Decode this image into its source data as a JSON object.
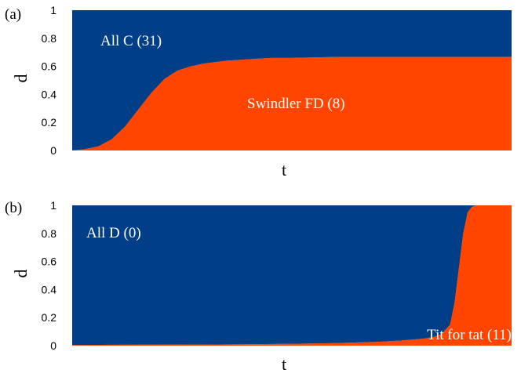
{
  "chart_data": [
    {
      "type": "area",
      "stacked": true,
      "panel_label": "(a)",
      "xlabel": "t",
      "ylabel": "d",
      "ylim": [
        0,
        1
      ],
      "yticks": [
        "0",
        "0.2",
        "0.4",
        "0.6",
        "0.8",
        "1"
      ],
      "x": [
        0,
        0.03,
        0.06,
        0.09,
        0.12,
        0.15,
        0.18,
        0.21,
        0.24,
        0.27,
        0.3,
        0.35,
        0.4,
        0.45,
        0.5,
        0.6,
        0.7,
        0.8,
        0.9,
        1.0
      ],
      "series": [
        {
          "name": "Swindler FD (8)",
          "color": "#ff4500",
          "values": [
            0.0,
            0.01,
            0.03,
            0.08,
            0.17,
            0.29,
            0.41,
            0.51,
            0.57,
            0.6,
            0.62,
            0.64,
            0.65,
            0.66,
            0.66,
            0.667,
            0.667,
            0.667,
            0.667,
            0.667
          ]
        },
        {
          "name": "All C (31)",
          "color": "#003f87",
          "values": [
            1.0,
            0.99,
            0.97,
            0.92,
            0.83,
            0.71,
            0.59,
            0.49,
            0.43,
            0.4,
            0.38,
            0.36,
            0.35,
            0.34,
            0.34,
            0.333,
            0.333,
            0.333,
            0.333,
            0.333
          ]
        }
      ]
    },
    {
      "type": "area",
      "stacked": true,
      "panel_label": "(b)",
      "xlabel": "t",
      "ylabel": "d",
      "ylim": [
        0,
        1
      ],
      "yticks": [
        "0",
        "0.2",
        "0.4",
        "0.6",
        "0.8",
        "1"
      ],
      "x": [
        0,
        0.1,
        0.2,
        0.3,
        0.4,
        0.5,
        0.6,
        0.7,
        0.75,
        0.8,
        0.82,
        0.84,
        0.86,
        0.87,
        0.88,
        0.89,
        0.9,
        0.91,
        0.92,
        0.94,
        0.97,
        1.0
      ],
      "series": [
        {
          "name": "Tit for tat (11)",
          "color": "#ff4500",
          "values": [
            0.005,
            0.006,
            0.007,
            0.008,
            0.01,
            0.013,
            0.018,
            0.028,
            0.037,
            0.05,
            0.06,
            0.08,
            0.15,
            0.3,
            0.55,
            0.8,
            0.95,
            0.99,
            1.0,
            1.0,
            1.0,
            1.0
          ]
        },
        {
          "name": "All D (0)",
          "color": "#003f87",
          "values": [
            0.995,
            0.994,
            0.993,
            0.992,
            0.99,
            0.987,
            0.982,
            0.972,
            0.963,
            0.95,
            0.94,
            0.92,
            0.85,
            0.7,
            0.45,
            0.2,
            0.05,
            0.01,
            0.0,
            0.0,
            0.0,
            0.0
          ]
        }
      ]
    }
  ]
}
